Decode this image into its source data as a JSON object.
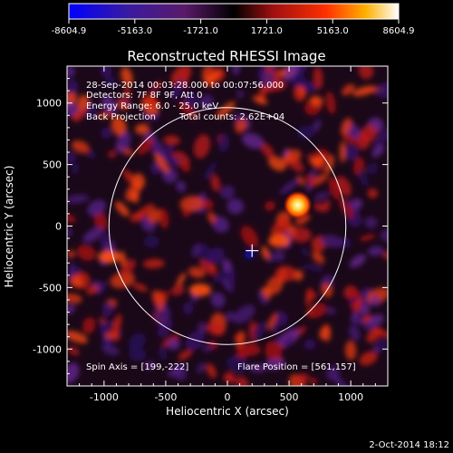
{
  "colorbar": {
    "ticks": [
      "-8604.9",
      "-5163.0",
      "-1721.0",
      "1721.0",
      "5163.0",
      "8604.9"
    ]
  },
  "plot": {
    "title": "Reconstructed RHESSI Image",
    "xlabel": "Heliocentric X (arcsec)",
    "ylabel": "Heliocentric Y (arcsec)",
    "xticks": [
      "-1000",
      "-500",
      "0",
      "500",
      "1000"
    ],
    "yticks": [
      "1000",
      "500",
      "0",
      "-500",
      "-1000"
    ],
    "xlim": [
      -1300,
      1300
    ],
    "ylim": [
      -1300,
      1300
    ],
    "solar_radius_arcsec": 960,
    "cross_position": [
      200,
      -200
    ]
  },
  "annotations": {
    "line1": "28-Sep-2014 00:03:28.000 to 00:07:56.000",
    "line2": "Detectors: 7F 8F 9F, Att 0",
    "line3": "Energy Range: 6.0 - 25.0 keV",
    "line4_method": "Back Projection",
    "line4_counts": "Total counts: 2.62E+04",
    "spin_axis": "Spin Axis = [199,-222]",
    "flare_position": "Flare Position = [561,157]"
  },
  "footer": {
    "date": "2-Oct-2014 18:12"
  },
  "colors": {
    "background": "#000000",
    "limb_circle": "#ffffff",
    "colormap": [
      "#0000ff",
      "#3a1a8c",
      "#5a1a5a",
      "#000000",
      "#a01010",
      "#ff2a00",
      "#ffb000",
      "#ffff80"
    ]
  },
  "chart_data": {
    "type": "heatmap",
    "title": "Reconstructed RHESSI Image",
    "xlabel": "Heliocentric X (arcsec)",
    "ylabel": "Heliocentric Y (arcsec)",
    "xlim": [
      -1300,
      1300
    ],
    "ylim": [
      -1300,
      1300
    ],
    "colorbar_range": [
      -8604.9,
      8604.9
    ],
    "peak_sources": [
      {
        "x": 570,
        "y": 170,
        "value": 8604.9
      },
      {
        "x": 420,
        "y": -120,
        "value": 2500
      },
      {
        "x": -220,
        "y": -520,
        "value": 2300
      },
      {
        "x": -960,
        "y": -250,
        "value": 2600
      }
    ]
  }
}
